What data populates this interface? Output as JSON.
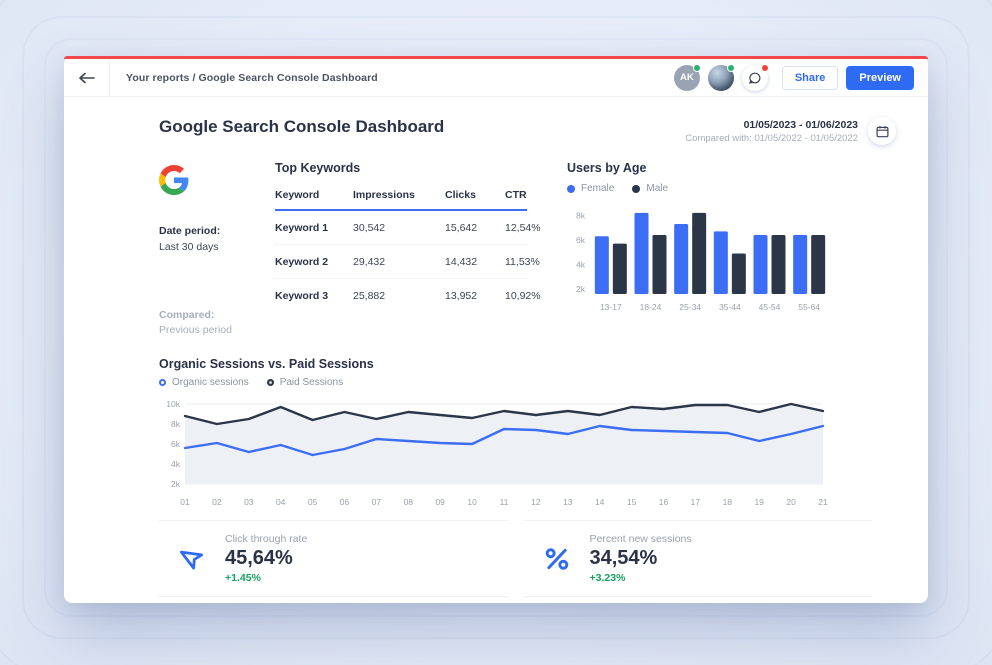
{
  "header": {
    "breadcrumb": "Your reports / Google Search Console Dashboard",
    "avatar_initials": "AK",
    "share_label": "Share",
    "preview_label": "Preview"
  },
  "title": "Google Search Console Dashboard",
  "date_range": {
    "current": "01/05/2023 - 01/06/2023",
    "compared": "Compared with: 01/05/2022 - 01/05/2022"
  },
  "meta": {
    "date_period_label": "Date period:",
    "date_period_value": "Last 30 days",
    "compared_label": "Compared:",
    "compared_value": "Previous period"
  },
  "top_keywords": {
    "title": "Top Keywords",
    "columns": [
      "Keyword",
      "Impressions",
      "Clicks",
      "CTR"
    ],
    "rows": [
      {
        "keyword": "Keyword 1",
        "impressions": "30,542",
        "clicks": "15,642",
        "ctr": "12,54%"
      },
      {
        "keyword": "Keyword 2",
        "impressions": "29,432",
        "clicks": "14,432",
        "ctr": "11,53%"
      },
      {
        "keyword": "Keyword 3",
        "impressions": "25,882",
        "clicks": "13,952",
        "ctr": "10,92%"
      }
    ]
  },
  "stats": [
    {
      "label": "Click through rate",
      "value": "45,64%",
      "delta": "+1.45%"
    },
    {
      "label": "Percent new sessions",
      "value": "34,54%",
      "delta": "+3.23%"
    }
  ],
  "colors": {
    "accent": "#2f6bf2",
    "topline": "#f2484b",
    "female": "#3b6ef5",
    "male": "#2b3648",
    "positive": "#17a05e"
  },
  "chart_data": [
    {
      "type": "bar",
      "title": "Users by Age",
      "categories": [
        "13-17",
        "18-24",
        "25-34",
        "35-44",
        "45-54",
        "55-64"
      ],
      "series": [
        {
          "name": "Female",
          "color": "#3b6ef5",
          "values": [
            6300,
            8200,
            7300,
            6700,
            6400,
            6400
          ]
        },
        {
          "name": "Male",
          "color": "#2b3648",
          "values": [
            5700,
            6400,
            8200,
            4900,
            6400,
            6400
          ]
        }
      ],
      "ylim": [
        1600,
        8600
      ],
      "yticks": [
        2000,
        4000,
        6000,
        8000
      ],
      "legend_position": "top",
      "grid": false
    },
    {
      "type": "line",
      "title": "Organic Sessions vs. Paid Sessions",
      "x": [
        "01",
        "02",
        "03",
        "04",
        "05",
        "06",
        "07",
        "08",
        "09",
        "10",
        "11",
        "12",
        "13",
        "14",
        "15",
        "16",
        "17",
        "18",
        "19",
        "20",
        "21"
      ],
      "series": [
        {
          "name": "Organic sessions",
          "color": "#3b6ef5",
          "area": false,
          "values": [
            5600,
            6100,
            5200,
            5900,
            4900,
            5500,
            6500,
            6300,
            6100,
            6000,
            7500,
            7400,
            7000,
            7800,
            7400,
            7300,
            7200,
            7100,
            6300,
            7000,
            7800
          ]
        },
        {
          "name": "Paid Sessions",
          "color": "#2b3648",
          "area": true,
          "values": [
            8800,
            8000,
            8500,
            9700,
            8400,
            9200,
            8500,
            9200,
            8900,
            8600,
            9300,
            8900,
            9300,
            8900,
            9700,
            9500,
            9900,
            9900,
            9200,
            10000,
            9300
          ]
        }
      ],
      "area_fill": "#edf0f5",
      "ylim": [
        2000,
        10000
      ],
      "yticks": [
        2000,
        4000,
        6000,
        8000,
        10000
      ],
      "grid": true,
      "legend_position": "top"
    }
  ]
}
